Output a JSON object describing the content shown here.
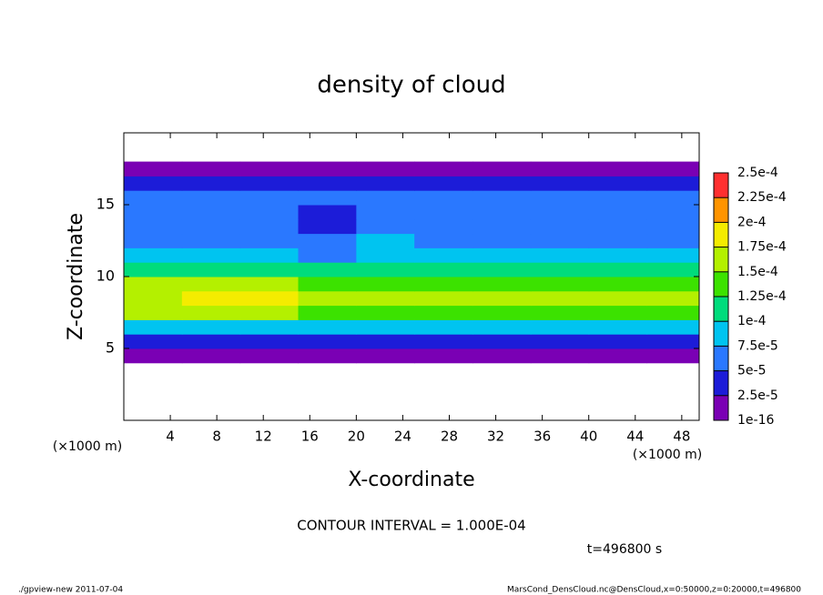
{
  "chart_data": {
    "type": "heatmap",
    "title": "density of cloud",
    "x_label": "X-coordinate",
    "y_label": "Z-coordinate",
    "x_unit_left": "(×1000 m)",
    "x_unit_right": "(×1000 m)",
    "contour_note": "CONTOUR INTERVAL = 1.000E-04",
    "time_note": "t=496800 s",
    "footer_left": "./gpview-new  2011-07-04",
    "footer_right": "MarsCond_DensCloud.nc@DensCloud,x=0:50000,z=0:20000,t=496800",
    "xlim": [
      0,
      49.5
    ],
    "xticks": [
      4,
      8,
      12,
      16,
      20,
      24,
      28,
      32,
      36,
      40,
      44,
      48
    ],
    "ylim": [
      0,
      20
    ],
    "yticks": [
      5,
      10,
      15
    ],
    "x": [
      2.5,
      7.5,
      12.5,
      17.5,
      22.5,
      27.5,
      32.5,
      37.5,
      42.5,
      47.5
    ],
    "y": [
      4.5,
      5.5,
      6.5,
      7.5,
      8.5,
      9.5,
      10.5,
      11.5,
      12.5,
      13.5,
      14.5,
      15.5,
      16.5,
      17.5
    ],
    "values": [
      [
        1e-05,
        1e-05,
        1e-05,
        1e-05,
        1e-05,
        1e-05,
        1e-05,
        1e-05,
        1e-05,
        1e-05
      ],
      [
        3.5e-05,
        3.5e-05,
        3.5e-05,
        3.5e-05,
        3.5e-05,
        3.5e-05,
        3.5e-05,
        3.5e-05,
        3.5e-05,
        3.5e-05
      ],
      [
        8e-05,
        8e-05,
        8e-05,
        8e-05,
        8e-05,
        8e-05,
        8e-05,
        8e-05,
        8e-05,
        8e-05
      ],
      [
        0.00015,
        0.00016,
        0.000155,
        0.00013,
        0.00013,
        0.00013,
        0.00013,
        0.00013,
        0.00013,
        0.00014
      ],
      [
        0.00017,
        0.00019,
        0.000185,
        0.00016,
        0.000155,
        0.00015,
        0.00015,
        0.00015,
        0.00015,
        0.000165
      ],
      [
        0.00015,
        0.00016,
        0.00015,
        0.000135,
        0.00014,
        0.000145,
        0.000145,
        0.000145,
        0.00014,
        0.000145
      ],
      [
        0.00011,
        0.00011,
        0.000105,
        0.0001,
        0.00011,
        0.000115,
        0.00011,
        0.00011,
        0.00011,
        0.00011
      ],
      [
        8e-05,
        8e-05,
        8e-05,
        7e-05,
        9e-05,
        8.5e-05,
        8.5e-05,
        8.5e-05,
        8.5e-05,
        8e-05
      ],
      [
        7e-05,
        7e-05,
        7e-05,
        6e-05,
        7.5e-05,
        7e-05,
        7e-05,
        7e-05,
        7e-05,
        7e-05
      ],
      [
        6.5e-05,
        6.5e-05,
        6e-05,
        4.5e-05,
        6e-05,
        6e-05,
        6e-05,
        6e-05,
        6e-05,
        6e-05
      ],
      [
        6e-05,
        6e-05,
        5.5e-05,
        4.5e-05,
        6e-05,
        5.5e-05,
        5.5e-05,
        5.5e-05,
        5.5e-05,
        5.5e-05
      ],
      [
        5.5e-05,
        5.5e-05,
        5.5e-05,
        5.5e-05,
        5.5e-05,
        5.5e-05,
        5.5e-05,
        5.5e-05,
        5.5e-05,
        5.5e-05
      ],
      [
        2.8e-05,
        2.8e-05,
        2.8e-05,
        2.8e-05,
        2.8e-05,
        2.8e-05,
        2.8e-05,
        2.8e-05,
        2.8e-05,
        2.8e-05
      ],
      [
        1e-05,
        1e-05,
        1e-05,
        1e-05,
        1e-05,
        1e-05,
        1e-05,
        1e-05,
        1e-05,
        1e-05
      ]
    ],
    "clim": [
      1e-16,
      0.00025
    ],
    "cticks": [
      {
        "value": 1e-16,
        "label": "1e-16"
      },
      {
        "value": 2.5e-05,
        "label": "2.5e-5"
      },
      {
        "value": 5e-05,
        "label": "5e-5"
      },
      {
        "value": 7.5e-05,
        "label": "7.5e-5"
      },
      {
        "value": 0.0001,
        "label": "1e-4"
      },
      {
        "value": 0.000125,
        "label": "1.25e-4"
      },
      {
        "value": 0.00015,
        "label": "1.5e-4"
      },
      {
        "value": 0.000175,
        "label": "1.75e-4"
      },
      {
        "value": 0.0002,
        "label": "2e-4"
      },
      {
        "value": 0.000225,
        "label": "2.25e-4"
      },
      {
        "value": 0.00025,
        "label": "2.5e-4"
      }
    ],
    "colors": [
      "#7a00b4",
      "#1c1cd8",
      "#2a78ff",
      "#00c4f0",
      "#00dc7c",
      "#3ce200",
      "#b4f000",
      "#f4ec00",
      "#ff9400",
      "#ff3030"
    ]
  }
}
